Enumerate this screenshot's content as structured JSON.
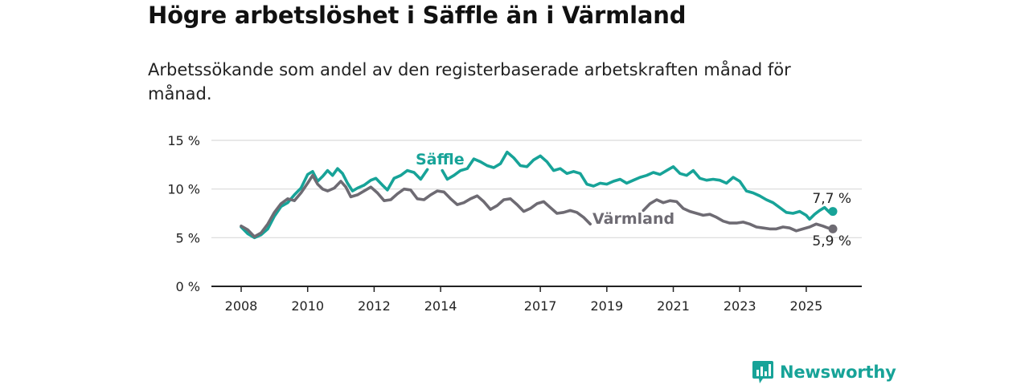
{
  "title": "Högre arbetslöshet i Säffle än i Värmland",
  "subtitle": "Arbetssökande som andel av den registerbaserade arbetskraften månad för månad.",
  "brand": {
    "name": "Newsworthy",
    "icon": "bar-chart-logo-icon",
    "color": "#17a398"
  },
  "chart_data": {
    "type": "line",
    "title": "Högre arbetslöshet i Säffle än i Värmland",
    "ylim": [
      0,
      15
    ],
    "y_ticks": [
      0,
      5,
      10,
      15
    ],
    "y_tick_labels": [
      "0 %",
      "5 %",
      "10 %",
      "15 %"
    ],
    "x_ticks": [
      2008,
      2010,
      2012,
      2014,
      2017,
      2019,
      2021,
      2023,
      2025
    ],
    "x_range": [
      2008,
      2025.8
    ],
    "grid": true,
    "series": [
      {
        "name": "Säffle",
        "color": "#17a398",
        "end_label": "7,7 %",
        "points": [
          [
            2008.0,
            6.1
          ],
          [
            2008.2,
            5.4
          ],
          [
            2008.4,
            5.0
          ],
          [
            2008.6,
            5.3
          ],
          [
            2008.8,
            5.9
          ],
          [
            2009.0,
            7.2
          ],
          [
            2009.2,
            8.2
          ],
          [
            2009.4,
            8.6
          ],
          [
            2009.6,
            9.4
          ],
          [
            2009.8,
            10.1
          ],
          [
            2010.0,
            11.5
          ],
          [
            2010.15,
            11.8
          ],
          [
            2010.3,
            10.8
          ],
          [
            2010.45,
            11.3
          ],
          [
            2010.6,
            11.9
          ],
          [
            2010.75,
            11.4
          ],
          [
            2010.9,
            12.1
          ],
          [
            2011.05,
            11.6
          ],
          [
            2011.2,
            10.6
          ],
          [
            2011.35,
            9.8
          ],
          [
            2011.5,
            10.1
          ],
          [
            2011.7,
            10.4
          ],
          [
            2011.9,
            10.9
          ],
          [
            2012.05,
            11.1
          ],
          [
            2012.25,
            10.4
          ],
          [
            2012.4,
            9.9
          ],
          [
            2012.6,
            11.1
          ],
          [
            2012.8,
            11.4
          ],
          [
            2013.0,
            11.9
          ],
          [
            2013.2,
            11.7
          ],
          [
            2013.4,
            11.0
          ],
          [
            2013.6,
            12.0
          ],
          null,
          [
            2014.05,
            11.9
          ],
          [
            2014.2,
            11.0
          ],
          [
            2014.4,
            11.4
          ],
          [
            2014.6,
            11.9
          ],
          [
            2014.8,
            12.1
          ],
          [
            2015.0,
            13.1
          ],
          [
            2015.2,
            12.8
          ],
          [
            2015.4,
            12.4
          ],
          [
            2015.6,
            12.2
          ],
          [
            2015.8,
            12.6
          ],
          [
            2016.0,
            13.8
          ],
          [
            2016.2,
            13.2
          ],
          [
            2016.4,
            12.4
          ],
          [
            2016.6,
            12.3
          ],
          [
            2016.8,
            13.0
          ],
          [
            2017.0,
            13.4
          ],
          [
            2017.2,
            12.8
          ],
          [
            2017.4,
            11.9
          ],
          [
            2017.6,
            12.1
          ],
          [
            2017.8,
            11.6
          ],
          [
            2018.0,
            11.8
          ],
          [
            2018.2,
            11.6
          ],
          [
            2018.4,
            10.5
          ],
          [
            2018.6,
            10.3
          ],
          [
            2018.8,
            10.6
          ],
          [
            2019.0,
            10.5
          ],
          [
            2019.2,
            10.8
          ],
          [
            2019.4,
            11.0
          ],
          [
            2019.6,
            10.6
          ],
          [
            2019.8,
            10.9
          ],
          [
            2020.0,
            11.2
          ],
          [
            2020.2,
            11.4
          ],
          [
            2020.4,
            11.7
          ],
          [
            2020.6,
            11.5
          ],
          [
            2020.8,
            11.9
          ],
          [
            2021.0,
            12.3
          ],
          [
            2021.2,
            11.6
          ],
          [
            2021.4,
            11.4
          ],
          [
            2021.6,
            11.9
          ],
          [
            2021.8,
            11.1
          ],
          [
            2022.0,
            10.9
          ],
          [
            2022.2,
            11.0
          ],
          [
            2022.4,
            10.9
          ],
          [
            2022.6,
            10.6
          ],
          [
            2022.8,
            11.2
          ],
          [
            2023.0,
            10.8
          ],
          [
            2023.2,
            9.8
          ],
          [
            2023.4,
            9.6
          ],
          [
            2023.6,
            9.3
          ],
          [
            2023.8,
            8.9
          ],
          [
            2024.0,
            8.6
          ],
          [
            2024.2,
            8.1
          ],
          [
            2024.4,
            7.6
          ],
          [
            2024.6,
            7.5
          ],
          [
            2024.8,
            7.7
          ],
          [
            2025.0,
            7.3
          ],
          [
            2025.1,
            6.9
          ],
          [
            2025.25,
            7.4
          ],
          [
            2025.4,
            7.8
          ],
          [
            2025.55,
            8.1
          ],
          [
            2025.7,
            7.6
          ],
          [
            2025.8,
            7.7
          ]
        ]
      },
      {
        "name": "Värmland",
        "color": "#6e6b73",
        "end_label": "5,9 %",
        "points": [
          [
            2008.0,
            6.2
          ],
          [
            2008.2,
            5.8
          ],
          [
            2008.4,
            5.1
          ],
          [
            2008.6,
            5.5
          ],
          [
            2008.8,
            6.4
          ],
          [
            2009.0,
            7.6
          ],
          [
            2009.2,
            8.5
          ],
          [
            2009.4,
            9.0
          ],
          [
            2009.6,
            8.8
          ],
          [
            2009.8,
            9.6
          ],
          [
            2010.0,
            10.6
          ],
          [
            2010.15,
            11.4
          ],
          [
            2010.3,
            10.5
          ],
          [
            2010.45,
            10.0
          ],
          [
            2010.6,
            9.8
          ],
          [
            2010.8,
            10.1
          ],
          [
            2011.0,
            10.8
          ],
          [
            2011.15,
            10.2
          ],
          [
            2011.3,
            9.2
          ],
          [
            2011.5,
            9.4
          ],
          [
            2011.7,
            9.8
          ],
          [
            2011.9,
            10.2
          ],
          [
            2012.1,
            9.6
          ],
          [
            2012.3,
            8.8
          ],
          [
            2012.5,
            8.9
          ],
          [
            2012.7,
            9.5
          ],
          [
            2012.9,
            10.0
          ],
          [
            2013.1,
            9.9
          ],
          [
            2013.3,
            9.0
          ],
          [
            2013.5,
            8.9
          ],
          [
            2013.7,
            9.4
          ],
          [
            2013.9,
            9.8
          ],
          [
            2014.1,
            9.7
          ],
          [
            2014.3,
            9.0
          ],
          [
            2014.5,
            8.4
          ],
          [
            2014.7,
            8.6
          ],
          [
            2014.9,
            9.0
          ],
          [
            2015.1,
            9.3
          ],
          [
            2015.3,
            8.7
          ],
          [
            2015.5,
            7.9
          ],
          [
            2015.7,
            8.3
          ],
          [
            2015.9,
            8.9
          ],
          [
            2016.1,
            9.0
          ],
          [
            2016.3,
            8.4
          ],
          [
            2016.5,
            7.7
          ],
          [
            2016.7,
            8.0
          ],
          [
            2016.9,
            8.5
          ],
          [
            2017.1,
            8.7
          ],
          [
            2017.3,
            8.1
          ],
          [
            2017.5,
            7.5
          ],
          [
            2017.7,
            7.6
          ],
          [
            2017.9,
            7.8
          ],
          [
            2018.1,
            7.6
          ],
          [
            2018.3,
            7.1
          ],
          [
            2018.5,
            6.4
          ],
          null,
          [
            2020.1,
            7.8
          ],
          [
            2020.3,
            8.5
          ],
          [
            2020.5,
            8.9
          ],
          [
            2020.7,
            8.6
          ],
          [
            2020.9,
            8.8
          ],
          [
            2021.1,
            8.7
          ],
          [
            2021.3,
            8.0
          ],
          [
            2021.5,
            7.7
          ],
          [
            2021.7,
            7.5
          ],
          [
            2021.9,
            7.3
          ],
          [
            2022.1,
            7.4
          ],
          [
            2022.3,
            7.1
          ],
          [
            2022.5,
            6.7
          ],
          [
            2022.7,
            6.5
          ],
          [
            2022.9,
            6.5
          ],
          [
            2023.1,
            6.6
          ],
          [
            2023.3,
            6.4
          ],
          [
            2023.5,
            6.1
          ],
          [
            2023.7,
            6.0
          ],
          [
            2023.9,
            5.9
          ],
          [
            2024.1,
            5.9
          ],
          [
            2024.3,
            6.1
          ],
          [
            2024.5,
            6.0
          ],
          [
            2024.7,
            5.7
          ],
          [
            2024.9,
            5.9
          ],
          [
            2025.1,
            6.1
          ],
          [
            2025.3,
            6.4
          ],
          [
            2025.5,
            6.2
          ],
          [
            2025.65,
            6.0
          ],
          [
            2025.8,
            5.9
          ]
        ]
      }
    ]
  }
}
